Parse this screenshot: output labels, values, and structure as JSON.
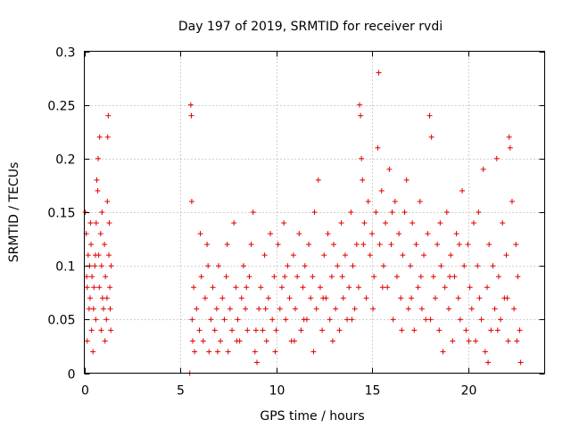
{
  "chart_data": {
    "type": "scatter",
    "title": "Day 197 of 2019, SRMTID for receiver rvdi",
    "xlabel": "GPS time / hours",
    "ylabel": "SRMTID / TECUs",
    "xlim": [
      0,
      24
    ],
    "ylim": [
      0,
      0.3
    ],
    "xticks": [
      0,
      5,
      10,
      15,
      20
    ],
    "yticks": [
      0,
      0.05,
      0.1,
      0.15,
      0.2,
      0.25,
      0.3
    ],
    "xtick_labels": [
      "0",
      "5",
      "10",
      "15",
      "20"
    ],
    "ytick_labels": [
      "0",
      "0.05",
      "0.1",
      "0.15",
      "0.2",
      "0.25",
      "0.3"
    ],
    "grid": true,
    "marker": "plus",
    "color": "#e00000",
    "series": [
      {
        "name": "SRMTID",
        "points": [
          [
            0.05,
            0.15
          ],
          [
            0.1,
            0.13
          ],
          [
            0.12,
            0.09
          ],
          [
            0.15,
            0.08
          ],
          [
            0.2,
            0.11
          ],
          [
            0.25,
            0.06
          ],
          [
            0.28,
            0.1
          ],
          [
            0.3,
            0.07
          ],
          [
            0.35,
            0.12
          ],
          [
            0.38,
            0.04
          ],
          [
            0.4,
            0.09
          ],
          [
            0.45,
            0.02
          ],
          [
            0.48,
            0.06
          ],
          [
            0.5,
            0.08
          ],
          [
            0.55,
            0.1
          ],
          [
            0.6,
            0.05
          ],
          [
            0.62,
            0.14
          ],
          [
            0.65,
            0.18
          ],
          [
            0.7,
            0.17
          ],
          [
            0.72,
            0.2
          ],
          [
            0.75,
            0.11
          ],
          [
            0.78,
            0.08
          ],
          [
            0.8,
            0.22
          ],
          [
            0.85,
            0.13
          ],
          [
            0.88,
            0.04
          ],
          [
            0.9,
            0.1
          ],
          [
            0.95,
            0.07
          ],
          [
            1.0,
            0.06
          ],
          [
            1.05,
            0.12
          ],
          [
            1.1,
            0.09
          ],
          [
            1.15,
            0.05
          ],
          [
            1.2,
            0.16
          ],
          [
            1.22,
            0.22
          ],
          [
            1.25,
            0.24
          ],
          [
            1.28,
            0.11
          ],
          [
            1.3,
            0.14
          ],
          [
            1.33,
            0.08
          ],
          [
            1.35,
            0.06
          ],
          [
            1.38,
            0.04
          ],
          [
            1.4,
            0.1
          ],
          [
            0.15,
            0.03
          ],
          [
            0.32,
            0.14
          ],
          [
            0.58,
            0.11
          ],
          [
            0.92,
            0.15
          ],
          [
            1.08,
            0.03
          ],
          [
            1.18,
            0.07
          ],
          [
            5.5,
            0.0
          ],
          [
            5.55,
            0.25
          ],
          [
            5.58,
            0.24
          ],
          [
            5.6,
            0.16
          ],
          [
            5.62,
            0.05
          ],
          [
            5.65,
            0.03
          ],
          [
            5.7,
            0.08
          ],
          [
            5.75,
            0.02
          ],
          [
            5.85,
            0.06
          ],
          [
            6.0,
            0.04
          ],
          [
            6.1,
            0.09
          ],
          [
            6.2,
            0.03
          ],
          [
            6.3,
            0.07
          ],
          [
            6.4,
            0.12
          ],
          [
            6.5,
            0.02
          ],
          [
            6.6,
            0.05
          ],
          [
            6.7,
            0.08
          ],
          [
            6.8,
            0.04
          ],
          [
            6.9,
            0.06
          ],
          [
            7.0,
            0.1
          ],
          [
            7.1,
            0.03
          ],
          [
            7.2,
            0.07
          ],
          [
            7.3,
            0.05
          ],
          [
            7.4,
            0.09
          ],
          [
            7.5,
            0.02
          ],
          [
            7.6,
            0.06
          ],
          [
            7.7,
            0.04
          ],
          [
            7.8,
            0.14
          ],
          [
            7.9,
            0.08
          ],
          [
            8.0,
            0.05
          ],
          [
            8.1,
            0.03
          ],
          [
            8.2,
            0.07
          ],
          [
            8.3,
            0.1
          ],
          [
            8.4,
            0.06
          ],
          [
            8.5,
            0.04
          ],
          [
            8.6,
            0.09
          ],
          [
            8.7,
            0.12
          ],
          [
            8.8,
            0.15
          ],
          [
            8.9,
            0.02
          ],
          [
            9.0,
            0.01
          ],
          [
            9.1,
            0.06
          ],
          [
            9.2,
            0.08
          ],
          [
            9.3,
            0.04
          ],
          [
            9.4,
            0.11
          ],
          [
            9.5,
            0.03
          ],
          [
            9.6,
            0.07
          ],
          [
            9.7,
            0.13
          ],
          [
            9.8,
            0.05
          ],
          [
            9.9,
            0.09
          ],
          [
            10.0,
            0.04
          ],
          [
            10.1,
            0.12
          ],
          [
            10.2,
            0.06
          ],
          [
            10.3,
            0.08
          ],
          [
            10.4,
            0.14
          ],
          [
            10.5,
            0.05
          ],
          [
            10.6,
            0.1
          ],
          [
            10.7,
            0.07
          ],
          [
            10.8,
            0.03
          ],
          [
            10.9,
            0.11
          ],
          [
            11.0,
            0.06
          ],
          [
            11.1,
            0.09
          ],
          [
            11.2,
            0.13
          ],
          [
            11.3,
            0.04
          ],
          [
            11.4,
            0.08
          ],
          [
            11.5,
            0.1
          ],
          [
            11.6,
            0.05
          ],
          [
            11.7,
            0.12
          ],
          [
            11.8,
            0.07
          ],
          [
            11.9,
            0.09
          ],
          [
            12.0,
            0.15
          ],
          [
            12.1,
            0.06
          ],
          [
            12.2,
            0.18
          ],
          [
            12.3,
            0.08
          ],
          [
            12.4,
            0.04
          ],
          [
            12.5,
            0.11
          ],
          [
            12.6,
            0.07
          ],
          [
            12.7,
            0.13
          ],
          [
            12.8,
            0.05
          ],
          [
            12.9,
            0.09
          ],
          [
            13.0,
            0.12
          ],
          [
            13.1,
            0.06
          ],
          [
            13.2,
            0.1
          ],
          [
            13.3,
            0.04
          ],
          [
            13.4,
            0.14
          ],
          [
            13.5,
            0.07
          ],
          [
            13.6,
            0.11
          ],
          [
            13.7,
            0.05
          ],
          [
            13.8,
            0.08
          ],
          [
            13.9,
            0.15
          ],
          [
            14.0,
            0.1
          ],
          [
            14.1,
            0.06
          ],
          [
            14.2,
            0.12
          ],
          [
            14.3,
            0.08
          ],
          [
            14.35,
            0.25
          ],
          [
            14.4,
            0.24
          ],
          [
            14.45,
            0.2
          ],
          [
            14.5,
            0.18
          ],
          [
            14.6,
            0.14
          ],
          [
            14.7,
            0.07
          ],
          [
            14.8,
            0.16
          ],
          [
            14.9,
            0.11
          ],
          [
            15.0,
            0.13
          ],
          [
            15.1,
            0.09
          ],
          [
            15.2,
            0.15
          ],
          [
            15.3,
            0.21
          ],
          [
            15.35,
            0.28
          ],
          [
            15.4,
            0.12
          ],
          [
            15.5,
            0.17
          ],
          [
            15.6,
            0.1
          ],
          [
            15.7,
            0.14
          ],
          [
            15.8,
            0.08
          ],
          [
            15.9,
            0.19
          ],
          [
            16.0,
            0.12
          ],
          [
            16.1,
            0.05
          ],
          [
            16.2,
            0.16
          ],
          [
            16.3,
            0.09
          ],
          [
            16.4,
            0.13
          ],
          [
            16.5,
            0.07
          ],
          [
            16.6,
            0.11
          ],
          [
            16.7,
            0.15
          ],
          [
            16.8,
            0.18
          ],
          [
            16.9,
            0.06
          ],
          [
            17.0,
            0.1
          ],
          [
            17.1,
            0.14
          ],
          [
            17.2,
            0.04
          ],
          [
            17.3,
            0.12
          ],
          [
            17.4,
            0.08
          ],
          [
            17.5,
            0.16
          ],
          [
            17.6,
            0.06
          ],
          [
            17.7,
            0.11
          ],
          [
            17.8,
            0.05
          ],
          [
            17.9,
            0.13
          ],
          [
            18.0,
            0.24
          ],
          [
            18.1,
            0.22
          ],
          [
            18.2,
            0.09
          ],
          [
            18.3,
            0.07
          ],
          [
            18.4,
            0.12
          ],
          [
            18.5,
            0.04
          ],
          [
            18.6,
            0.1
          ],
          [
            18.7,
            0.02
          ],
          [
            18.8,
            0.08
          ],
          [
            18.9,
            0.15
          ],
          [
            19.0,
            0.06
          ],
          [
            19.1,
            0.11
          ],
          [
            19.2,
            0.03
          ],
          [
            19.3,
            0.09
          ],
          [
            19.4,
            0.13
          ],
          [
            19.5,
            0.07
          ],
          [
            19.6,
            0.05
          ],
          [
            19.7,
            0.17
          ],
          [
            19.8,
            0.1
          ],
          [
            19.9,
            0.04
          ],
          [
            20.0,
            0.12
          ],
          [
            20.1,
            0.08
          ],
          [
            20.2,
            0.06
          ],
          [
            20.3,
            0.14
          ],
          [
            20.4,
            0.03
          ],
          [
            20.5,
            0.1
          ],
          [
            20.6,
            0.07
          ],
          [
            20.7,
            0.05
          ],
          [
            20.8,
            0.19
          ],
          [
            20.9,
            0.02
          ],
          [
            21.0,
            0.08
          ],
          [
            21.1,
            0.12
          ],
          [
            21.2,
            0.04
          ],
          [
            21.3,
            0.1
          ],
          [
            21.4,
            0.06
          ],
          [
            21.5,
            0.2
          ],
          [
            21.6,
            0.09
          ],
          [
            21.7,
            0.05
          ],
          [
            21.8,
            0.14
          ],
          [
            21.9,
            0.07
          ],
          [
            22.0,
            0.11
          ],
          [
            22.1,
            0.03
          ],
          [
            22.15,
            0.22
          ],
          [
            22.2,
            0.21
          ],
          [
            22.3,
            0.16
          ],
          [
            22.4,
            0.06
          ],
          [
            22.5,
            0.12
          ],
          [
            22.6,
            0.09
          ],
          [
            22.7,
            0.04
          ],
          [
            22.75,
            0.01
          ],
          [
            6.05,
            0.13
          ],
          [
            6.45,
            0.1
          ],
          [
            6.95,
            0.02
          ],
          [
            7.45,
            0.12
          ],
          [
            7.95,
            0.03
          ],
          [
            8.45,
            0.08
          ],
          [
            8.95,
            0.04
          ],
          [
            9.45,
            0.06
          ],
          [
            9.95,
            0.02
          ],
          [
            10.45,
            0.09
          ],
          [
            10.95,
            0.03
          ],
          [
            11.45,
            0.05
          ],
          [
            11.95,
            0.02
          ],
          [
            12.45,
            0.07
          ],
          [
            12.95,
            0.03
          ],
          [
            13.45,
            0.09
          ],
          [
            13.95,
            0.05
          ],
          [
            14.55,
            0.12
          ],
          [
            15.05,
            0.06
          ],
          [
            15.55,
            0.08
          ],
          [
            16.05,
            0.15
          ],
          [
            16.55,
            0.04
          ],
          [
            17.05,
            0.07
          ],
          [
            17.55,
            0.09
          ],
          [
            18.05,
            0.05
          ],
          [
            18.55,
            0.14
          ],
          [
            19.05,
            0.09
          ],
          [
            19.55,
            0.12
          ],
          [
            20.05,
            0.03
          ],
          [
            20.55,
            0.15
          ],
          [
            21.05,
            0.01
          ],
          [
            21.55,
            0.04
          ],
          [
            22.05,
            0.07
          ],
          [
            22.55,
            0.03
          ]
        ]
      }
    ]
  }
}
